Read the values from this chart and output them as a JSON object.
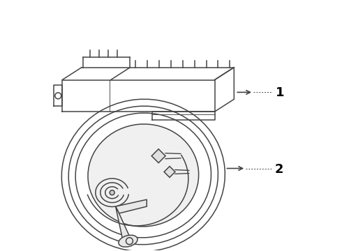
{
  "background_color": "#ffffff",
  "line_color": "#444444",
  "label_color": "#000000",
  "part1_label": "1",
  "part2_label": "2",
  "fig_width": 4.9,
  "fig_height": 3.6,
  "dpi": 100
}
